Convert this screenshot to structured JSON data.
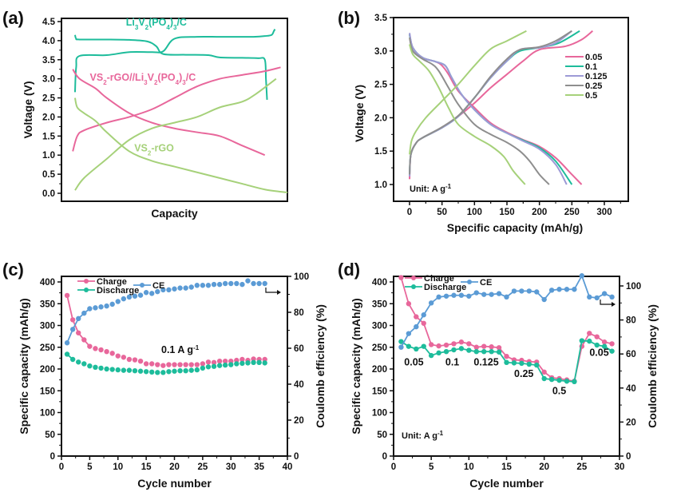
{
  "colors": {
    "pink": "#e8679b",
    "teal": "#1dbc9b",
    "blue": "#5b9bd5",
    "purple": "#9d9ad6",
    "gray": "#8e8e8e",
    "lightgreen": "#a6d17a",
    "axis": "#111111"
  },
  "chart_data": [
    {
      "panel": "(a)",
      "type": "line",
      "title": "",
      "xlabel": "Capacity",
      "ylabel": "Voltage (V)",
      "xlim": [
        0,
        1
      ],
      "ylim": [
        -0.2,
        4.6
      ],
      "xticks_shown": false,
      "yticks": [
        0.0,
        0.5,
        1.0,
        1.5,
        2.0,
        2.5,
        3.0,
        3.5,
        4.0,
        4.5
      ],
      "ytick_labels": [
        "0.0",
        "0.5",
        "1.0",
        "1.5",
        "2.0",
        "2.5",
        "3.0",
        "3.5",
        "4.0",
        "4.5"
      ],
      "annotations": [
        {
          "text": "Li3V2(PO4)3/C",
          "color_key": "teal",
          "x": 0.42,
          "y": 4.4
        },
        {
          "text": "VS2-rGO//Li3V2(PO4)3/C",
          "color_key": "pink",
          "x": 0.36,
          "y": 2.95
        },
        {
          "text": "VS2-rGO",
          "color_key": "lightgreen",
          "x": 0.41,
          "y": 1.1
        }
      ],
      "series": [
        {
          "name": "Li3V2(PO4)3/C charge",
          "color_key": "teal",
          "x": [
            0.06,
            0.065,
            0.08,
            0.2,
            0.3,
            0.4,
            0.45,
            0.5,
            0.6,
            0.7,
            0.8,
            0.85,
            0.9,
            0.93,
            0.94,
            0.945
          ],
          "y": [
            2.65,
            3.3,
            3.6,
            3.62,
            3.7,
            3.7,
            3.72,
            4.05,
            4.1,
            4.1,
            4.1,
            4.1,
            4.12,
            4.15,
            4.25,
            4.3
          ]
        },
        {
          "name": "Li3V2(PO4)3/C discharge",
          "color_key": "teal",
          "x": [
            0.06,
            0.065,
            0.08,
            0.2,
            0.3,
            0.38,
            0.42,
            0.45,
            0.55,
            0.65,
            0.7,
            0.8,
            0.87,
            0.9,
            0.905,
            0.91
          ],
          "y": [
            4.15,
            4.05,
            4.03,
            4.03,
            4.02,
            3.98,
            3.85,
            3.65,
            3.63,
            3.62,
            3.56,
            3.55,
            3.54,
            3.5,
            3.0,
            2.45
          ]
        },
        {
          "name": "VS2-rGO//Li3V2(PO4)3/C charge",
          "color_key": "pink",
          "x": [
            0.05,
            0.07,
            0.1,
            0.2,
            0.3,
            0.4,
            0.5,
            0.6,
            0.7,
            0.8,
            0.9,
            0.97
          ],
          "y": [
            1.1,
            1.5,
            1.65,
            1.85,
            2.0,
            2.2,
            2.5,
            2.8,
            3.0,
            3.1,
            3.2,
            3.3
          ]
        },
        {
          "name": "VS2-rGO//Li3V2(PO4)3/C discharge",
          "color_key": "pink",
          "x": [
            0.05,
            0.08,
            0.15,
            0.2,
            0.3,
            0.4,
            0.5,
            0.6,
            0.7,
            0.8,
            0.9
          ],
          "y": [
            3.25,
            3.0,
            2.75,
            2.5,
            2.1,
            1.85,
            1.7,
            1.6,
            1.5,
            1.25,
            1.0
          ]
        },
        {
          "name": "VS2-rGO discharge",
          "color_key": "lightgreen",
          "x": [
            0.06,
            0.07,
            0.1,
            0.15,
            0.2,
            0.3,
            0.4,
            0.5,
            0.6,
            0.7,
            0.8,
            0.9,
            1.0
          ],
          "y": [
            2.5,
            2.25,
            2.1,
            1.9,
            1.6,
            1.1,
            0.85,
            0.7,
            0.55,
            0.4,
            0.25,
            0.1,
            0.02
          ]
        },
        {
          "name": "VS2-rGO charge",
          "color_key": "lightgreen",
          "x": [
            0.06,
            0.1,
            0.2,
            0.3,
            0.4,
            0.5,
            0.6,
            0.7,
            0.8,
            0.86,
            0.95
          ],
          "y": [
            0.08,
            0.4,
            0.9,
            1.4,
            1.7,
            1.85,
            2.0,
            2.25,
            2.4,
            2.6,
            3.0
          ]
        }
      ]
    },
    {
      "panel": "(b)",
      "type": "line",
      "title": "",
      "xlabel": "Specific capacity (mAh/g)",
      "ylabel": "Voltage (V)",
      "xlim": [
        -25,
        325
      ],
      "ylim": [
        0.75,
        3.5
      ],
      "xticks": [
        0,
        50,
        100,
        150,
        200,
        250,
        300
      ],
      "yticks": [
        1.0,
        1.5,
        2.0,
        2.5,
        3.0,
        3.5
      ],
      "ytick_labels": [
        "1.0",
        "1.5",
        "2.0",
        "2.5",
        "3.0",
        "3.5"
      ],
      "legend": {
        "position": "top-right",
        "entries": [
          "0.05",
          "0.1",
          "0.125",
          "0.25",
          "0.5"
        ]
      },
      "annotation": "Unit: A g-1",
      "series": [
        {
          "name": "0.05",
          "color_key": "pink",
          "charge": {
            "x": [
              0,
              2,
              10,
              20,
              50,
              75,
              100,
              125,
              150,
              175,
              200,
              240,
              265,
              282
            ],
            "y": [
              1.08,
              1.45,
              1.62,
              1.7,
              1.85,
              2.02,
              2.22,
              2.45,
              2.65,
              2.85,
              3.02,
              3.07,
              3.17,
              3.3
            ]
          },
          "discharge": {
            "x": [
              0,
              5,
              20,
              40,
              50,
              60,
              75,
              100,
              125,
              150,
              175,
              200,
              225,
              250,
              265
            ],
            "y": [
              3.25,
              3.05,
              2.9,
              2.84,
              2.78,
              2.65,
              2.4,
              2.15,
              1.92,
              1.78,
              1.67,
              1.57,
              1.4,
              1.15,
              1.0
            ]
          }
        },
        {
          "name": "0.1",
          "color_key": "teal",
          "charge": {
            "x": [
              0,
              2,
              10,
              20,
              50,
              75,
              100,
              125,
              150,
              170,
              200,
              230,
              262
            ],
            "y": [
              1.15,
              1.45,
              1.62,
              1.7,
              1.85,
              2.02,
              2.3,
              2.6,
              2.85,
              3.0,
              3.05,
              3.12,
              3.3
            ]
          },
          "discharge": {
            "x": [
              0,
              5,
              20,
              40,
              55,
              65,
              80,
              100,
              125,
              150,
              175,
              200,
              225,
              250
            ],
            "y": [
              3.25,
              3.05,
              2.9,
              2.84,
              2.78,
              2.6,
              2.35,
              2.12,
              1.9,
              1.77,
              1.66,
              1.55,
              1.35,
              1.0
            ]
          }
        },
        {
          "name": "0.125",
          "color_key": "purple",
          "charge": {
            "x": [
              0,
              2,
              10,
              20,
              50,
              75,
              100,
              125,
              150,
              170,
              200,
              225,
              250
            ],
            "y": [
              1.12,
              1.45,
              1.62,
              1.7,
              1.85,
              2.02,
              2.3,
              2.6,
              2.85,
              3.02,
              3.05,
              3.12,
              3.3
            ]
          },
          "discharge": {
            "x": [
              0,
              5,
              20,
              40,
              55,
              65,
              80,
              100,
              125,
              150,
              175,
              200,
              225,
              242
            ],
            "y": [
              3.27,
              3.05,
              2.9,
              2.84,
              2.78,
              2.6,
              2.35,
              2.12,
              1.9,
              1.77,
              1.65,
              1.53,
              1.3,
              1.0
            ]
          }
        },
        {
          "name": "0.25",
          "color_key": "gray",
          "charge": {
            "x": [
              0,
              2,
              10,
              20,
              50,
              75,
              100,
              125,
              150,
              170,
              200,
              225,
              250
            ],
            "y": [
              1.15,
              1.45,
              1.62,
              1.7,
              1.86,
              2.03,
              2.3,
              2.62,
              2.88,
              3.02,
              3.06,
              3.15,
              3.3
            ]
          },
          "discharge": {
            "x": [
              0,
              5,
              20,
              35,
              45,
              60,
              75,
              100,
              125,
              150,
              170,
              185,
              200,
              215
            ],
            "y": [
              3.2,
              3.0,
              2.88,
              2.8,
              2.7,
              2.45,
              2.2,
              1.9,
              1.75,
              1.63,
              1.5,
              1.35,
              1.15,
              1.0
            ]
          }
        },
        {
          "name": "0.5",
          "color_key": "lightgreen",
          "charge": {
            "x": [
              0,
              3,
              10,
              25,
              50,
              75,
              100,
              125,
              150,
              180
            ],
            "y": [
              1.45,
              1.65,
              1.8,
              2.0,
              2.25,
              2.5,
              2.78,
              3.03,
              3.15,
              3.3
            ]
          },
          "discharge": {
            "x": [
              0,
              5,
              15,
              30,
              45,
              60,
              75,
              100,
              125,
              145,
              160,
              178
            ],
            "y": [
              3.1,
              2.95,
              2.85,
              2.7,
              2.45,
              2.15,
              1.9,
              1.72,
              1.58,
              1.42,
              1.2,
              1.0
            ]
          }
        }
      ]
    },
    {
      "panel": "(c)",
      "type": "scatter",
      "title": "",
      "xlabel": "Cycle number",
      "ylabel": "Specific capacity (mAh/g)",
      "ylabel_right": "Coulomb efficiency (%)",
      "xlim": [
        0,
        40
      ],
      "ylim": [
        0,
        412
      ],
      "ylim_right": [
        0,
        103
      ],
      "xticks": [
        0,
        5,
        10,
        15,
        20,
        25,
        30,
        35,
        40
      ],
      "yticks": [
        0,
        50,
        100,
        150,
        200,
        250,
        300,
        350,
        400
      ],
      "yticks_right": [
        0,
        20,
        40,
        60,
        80,
        100
      ],
      "legend": {
        "position": "top-left",
        "entries": [
          "Charge",
          "Discharge",
          "CE"
        ]
      },
      "annotation": "0.1 A g-1",
      "arrow_hint": "right-axis",
      "x": [
        1,
        2,
        3,
        4,
        5,
        6,
        7,
        8,
        9,
        10,
        11,
        12,
        13,
        14,
        15,
        16,
        17,
        18,
        19,
        20,
        21,
        22,
        23,
        24,
        25,
        26,
        27,
        28,
        29,
        30,
        31,
        32,
        33,
        34,
        35,
        36
      ],
      "series": [
        {
          "name": "Charge",
          "color_key": "pink",
          "axis": "left",
          "line_segments_until": 5,
          "values": [
            369,
            313,
            283,
            267,
            252,
            247,
            244,
            240,
            236,
            230,
            227,
            222,
            221,
            218,
            212,
            212,
            210,
            208,
            210,
            210,
            210,
            210,
            210,
            210,
            212,
            216,
            215,
            218,
            218,
            218,
            220,
            222,
            220,
            223,
            222,
            222
          ]
        },
        {
          "name": "Discharge",
          "color_key": "teal",
          "axis": "left",
          "line_segments_until": 2,
          "values": [
            234,
            222,
            216,
            212,
            207,
            204,
            202,
            200,
            199,
            198,
            197,
            197,
            196,
            195,
            194,
            193,
            192,
            192,
            194,
            195,
            196,
            196,
            197,
            198,
            202,
            205,
            206,
            208,
            209,
            210,
            212,
            213,
            214,
            215,
            215,
            214
          ]
        },
        {
          "name": "CE",
          "color_key": "blue",
          "axis": "right",
          "line_segments_until": 5,
          "values": [
            63,
            70.5,
            76.5,
            79.5,
            82,
            82.5,
            83,
            83.5,
            84.5,
            86,
            87.5,
            88.5,
            89,
            89.5,
            91,
            90.5,
            91.5,
            92.5,
            92.5,
            93,
            93.5,
            93.5,
            94,
            95,
            95,
            95,
            95.5,
            95.5,
            96,
            96,
            96,
            95.5,
            97.5,
            96,
            96,
            96
          ]
        }
      ]
    },
    {
      "panel": "(d)",
      "type": "line",
      "title": "",
      "xlabel": "Cycle number",
      "ylabel": "Specific capacity (mAh/g)",
      "ylabel_right": "Coulomb efficiency (%)",
      "xlim": [
        0,
        30
      ],
      "ylim": [
        0,
        420
      ],
      "ylim_right": [
        0,
        107
      ],
      "xticks": [
        0,
        5,
        10,
        15,
        20,
        25,
        30
      ],
      "yticks": [
        0,
        50,
        100,
        150,
        200,
        250,
        300,
        350,
        400
      ],
      "yticks_right": [
        0,
        20,
        40,
        60,
        80,
        100
      ],
      "legend": {
        "position": "top-left",
        "entries": [
          "Charge",
          "Discharge",
          "CE"
        ]
      },
      "annotation": "Unit: A g-1",
      "rate_labels": [
        {
          "text": "0.05",
          "x": 2.7,
          "y": 208
        },
        {
          "text": "0.1",
          "x": 7.8,
          "y": 208
        },
        {
          "text": "0.125",
          "x": 12.3,
          "y": 208
        },
        {
          "text": "0.25",
          "x": 17.3,
          "y": 182
        },
        {
          "text": "0.5",
          "x": 22,
          "y": 142
        },
        {
          "text": "0.05",
          "x": 27.3,
          "y": 230
        }
      ],
      "arrow_hint": "right-axis",
      "x": [
        1,
        2,
        3,
        4,
        5,
        6,
        7,
        8,
        9,
        10,
        11,
        12,
        13,
        14,
        15,
        16,
        17,
        18,
        19,
        20,
        21,
        22,
        23,
        24,
        25,
        26,
        27,
        28,
        29
      ],
      "series": [
        {
          "name": "Charge",
          "color_key": "pink",
          "axis": "left",
          "values": [
            410,
            350,
            320,
            305,
            256,
            253,
            255,
            258,
            262,
            258,
            250,
            252,
            251,
            249,
            229,
            221,
            220,
            217,
            216,
            193,
            180,
            178,
            175,
            172,
            252,
            282,
            274,
            262,
            258
          ]
        },
        {
          "name": "Discharge",
          "color_key": "teal",
          "axis": "left",
          "values": [
            263,
            252,
            246,
            252,
            231,
            237,
            240,
            244,
            247,
            243,
            240,
            240,
            240,
            239,
            215,
            214,
            213,
            211,
            209,
            178,
            176,
            174,
            172,
            171,
            265,
            264,
            255,
            252,
            241
          ]
        },
        {
          "name": "CE",
          "color_key": "blue",
          "axis": "right",
          "values": [
            64,
            72,
            76,
            83,
            90,
            93.5,
            94,
            94.5,
            94.5,
            94,
            96,
            95,
            95,
            95.5,
            93.5,
            97,
            97,
            97,
            96.5,
            92,
            97.5,
            98,
            98,
            98,
            106,
            93.5,
            93,
            95.5,
            93.5
          ]
        }
      ]
    }
  ],
  "labels": {
    "panel_a": "(a)",
    "panel_b": "(b)",
    "panel_c": "(c)",
    "panel_d": "(d)"
  }
}
